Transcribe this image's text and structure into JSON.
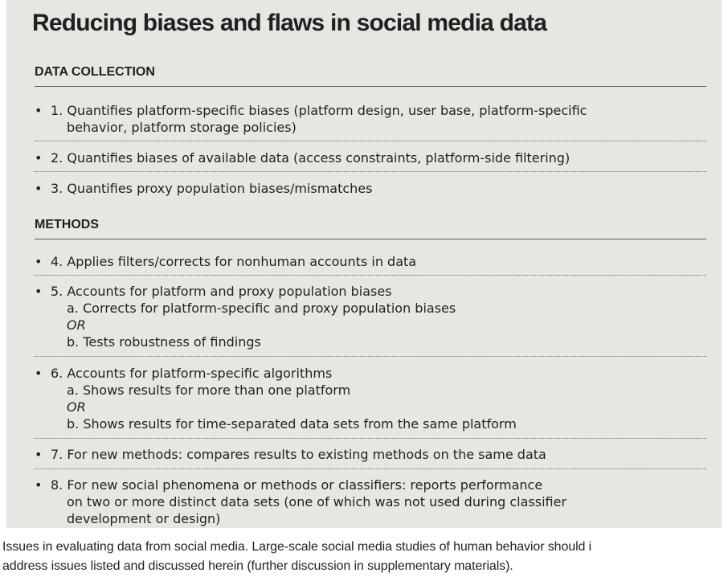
{
  "title": "Reducing biases and flaws in social media data",
  "bullet_glyph": "•",
  "sections": {
    "collection": {
      "heading": "DATA COLLECTION",
      "items": [
        {
          "lines": [
            "1. Quantifies  platform-specific biases (platform design, user base, platform-specific",
            "behavior, platform storage policies)"
          ]
        },
        {
          "lines": [
            "2. Quantifies biases of available data (access constraints, platform-side filtering)"
          ]
        },
        {
          "lines": [
            "3. Quantifies proxy population biases/mismatches"
          ]
        }
      ]
    },
    "methods": {
      "heading": "METHODS",
      "items": [
        {
          "lines": [
            "4. Applies filters/corrects for nonhuman accounts in data"
          ]
        },
        {
          "lines": [
            "5. Accounts for platform and proxy population biases"
          ],
          "sub_a": "a. Corrects for platform-specific and proxy population biases",
          "or": "OR",
          "sub_b": "b. Tests robustness of findings"
        },
        {
          "lines": [
            "6. Accounts for platform-specific algorithms"
          ],
          "sub_a": "a. Shows results for more than one platform",
          "or": "OR",
          "sub_b": "b. Shows results for time-separated data sets from the same platform"
        },
        {
          "lines": [
            "7. For new methods: compares results to existing methods on the same data"
          ]
        },
        {
          "lines": [
            "8. For new social phenomena or methods or classifiers: reports performance",
            "on two or more distinct data sets (one of which was not used during classifier",
            "development or design)"
          ]
        }
      ]
    }
  },
  "caption": {
    "line1": "Issues in evaluating data from social media. Large-scale social media studies of human behavior should i",
    "line2": "address issues listed and discussed herein (further discussion in supplementary materials)."
  }
}
